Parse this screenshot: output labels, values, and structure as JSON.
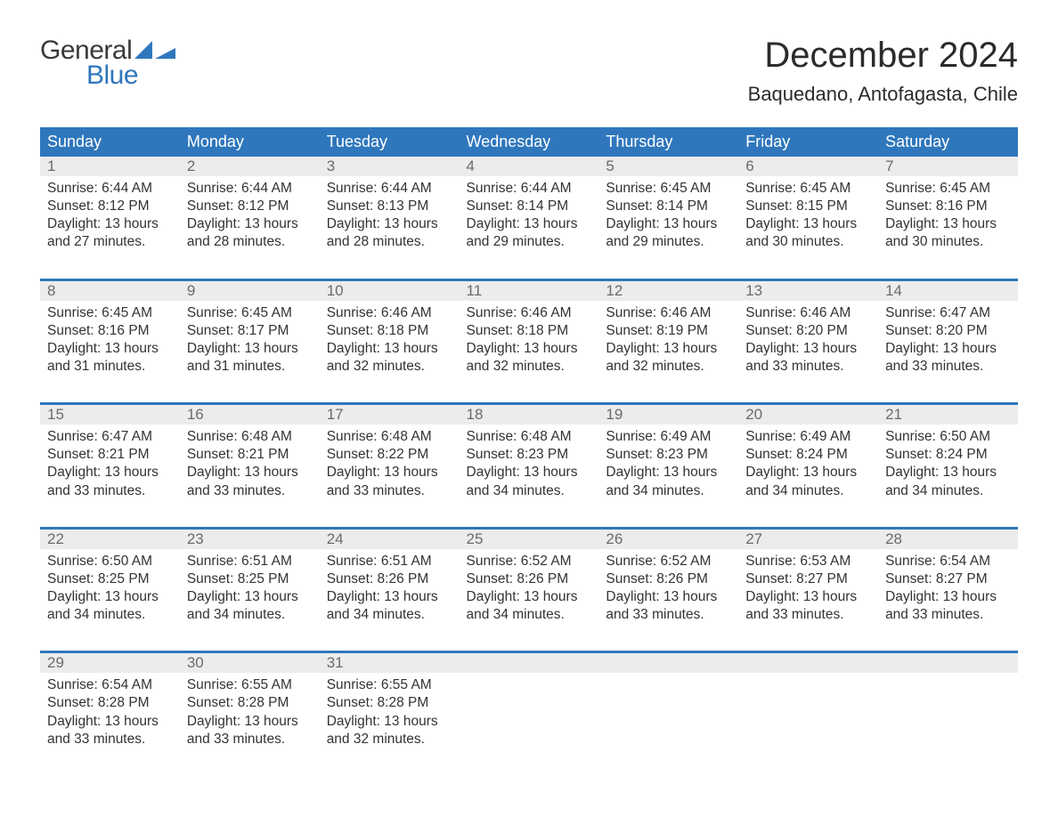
{
  "logo": {
    "word1": "General",
    "word2": "Blue",
    "color_primary": "#2f77bc",
    "color_dark": "#3a3a3a"
  },
  "title": "December 2024",
  "location": "Baquedano, Antofagasta, Chile",
  "colors": {
    "header_bg": "#2f77bc",
    "header_text": "#ffffff",
    "daynum_bg": "#ececec",
    "daynum_text": "#6b6b6b",
    "body_text": "#333333",
    "page_bg": "#ffffff"
  },
  "fonts": {
    "title_size": 40,
    "location_size": 22,
    "dayheader_size": 18,
    "daynum_size": 17,
    "data_size": 15.5
  },
  "day_headers": [
    "Sunday",
    "Monday",
    "Tuesday",
    "Wednesday",
    "Thursday",
    "Friday",
    "Saturday"
  ],
  "weeks": [
    [
      {
        "num": "1",
        "sunrise": "Sunrise: 6:44 AM",
        "sunset": "Sunset: 8:12 PM",
        "day1": "Daylight: 13 hours",
        "day2": "and 27 minutes."
      },
      {
        "num": "2",
        "sunrise": "Sunrise: 6:44 AM",
        "sunset": "Sunset: 8:12 PM",
        "day1": "Daylight: 13 hours",
        "day2": "and 28 minutes."
      },
      {
        "num": "3",
        "sunrise": "Sunrise: 6:44 AM",
        "sunset": "Sunset: 8:13 PM",
        "day1": "Daylight: 13 hours",
        "day2": "and 28 minutes."
      },
      {
        "num": "4",
        "sunrise": "Sunrise: 6:44 AM",
        "sunset": "Sunset: 8:14 PM",
        "day1": "Daylight: 13 hours",
        "day2": "and 29 minutes."
      },
      {
        "num": "5",
        "sunrise": "Sunrise: 6:45 AM",
        "sunset": "Sunset: 8:14 PM",
        "day1": "Daylight: 13 hours",
        "day2": "and 29 minutes."
      },
      {
        "num": "6",
        "sunrise": "Sunrise: 6:45 AM",
        "sunset": "Sunset: 8:15 PM",
        "day1": "Daylight: 13 hours",
        "day2": "and 30 minutes."
      },
      {
        "num": "7",
        "sunrise": "Sunrise: 6:45 AM",
        "sunset": "Sunset: 8:16 PM",
        "day1": "Daylight: 13 hours",
        "day2": "and 30 minutes."
      }
    ],
    [
      {
        "num": "8",
        "sunrise": "Sunrise: 6:45 AM",
        "sunset": "Sunset: 8:16 PM",
        "day1": "Daylight: 13 hours",
        "day2": "and 31 minutes."
      },
      {
        "num": "9",
        "sunrise": "Sunrise: 6:45 AM",
        "sunset": "Sunset: 8:17 PM",
        "day1": "Daylight: 13 hours",
        "day2": "and 31 minutes."
      },
      {
        "num": "10",
        "sunrise": "Sunrise: 6:46 AM",
        "sunset": "Sunset: 8:18 PM",
        "day1": "Daylight: 13 hours",
        "day2": "and 32 minutes."
      },
      {
        "num": "11",
        "sunrise": "Sunrise: 6:46 AM",
        "sunset": "Sunset: 8:18 PM",
        "day1": "Daylight: 13 hours",
        "day2": "and 32 minutes."
      },
      {
        "num": "12",
        "sunrise": "Sunrise: 6:46 AM",
        "sunset": "Sunset: 8:19 PM",
        "day1": "Daylight: 13 hours",
        "day2": "and 32 minutes."
      },
      {
        "num": "13",
        "sunrise": "Sunrise: 6:46 AM",
        "sunset": "Sunset: 8:20 PM",
        "day1": "Daylight: 13 hours",
        "day2": "and 33 minutes."
      },
      {
        "num": "14",
        "sunrise": "Sunrise: 6:47 AM",
        "sunset": "Sunset: 8:20 PM",
        "day1": "Daylight: 13 hours",
        "day2": "and 33 minutes."
      }
    ],
    [
      {
        "num": "15",
        "sunrise": "Sunrise: 6:47 AM",
        "sunset": "Sunset: 8:21 PM",
        "day1": "Daylight: 13 hours",
        "day2": "and 33 minutes."
      },
      {
        "num": "16",
        "sunrise": "Sunrise: 6:48 AM",
        "sunset": "Sunset: 8:21 PM",
        "day1": "Daylight: 13 hours",
        "day2": "and 33 minutes."
      },
      {
        "num": "17",
        "sunrise": "Sunrise: 6:48 AM",
        "sunset": "Sunset: 8:22 PM",
        "day1": "Daylight: 13 hours",
        "day2": "and 33 minutes."
      },
      {
        "num": "18",
        "sunrise": "Sunrise: 6:48 AM",
        "sunset": "Sunset: 8:23 PM",
        "day1": "Daylight: 13 hours",
        "day2": "and 34 minutes."
      },
      {
        "num": "19",
        "sunrise": "Sunrise: 6:49 AM",
        "sunset": "Sunset: 8:23 PM",
        "day1": "Daylight: 13 hours",
        "day2": "and 34 minutes."
      },
      {
        "num": "20",
        "sunrise": "Sunrise: 6:49 AM",
        "sunset": "Sunset: 8:24 PM",
        "day1": "Daylight: 13 hours",
        "day2": "and 34 minutes."
      },
      {
        "num": "21",
        "sunrise": "Sunrise: 6:50 AM",
        "sunset": "Sunset: 8:24 PM",
        "day1": "Daylight: 13 hours",
        "day2": "and 34 minutes."
      }
    ],
    [
      {
        "num": "22",
        "sunrise": "Sunrise: 6:50 AM",
        "sunset": "Sunset: 8:25 PM",
        "day1": "Daylight: 13 hours",
        "day2": "and 34 minutes."
      },
      {
        "num": "23",
        "sunrise": "Sunrise: 6:51 AM",
        "sunset": "Sunset: 8:25 PM",
        "day1": "Daylight: 13 hours",
        "day2": "and 34 minutes."
      },
      {
        "num": "24",
        "sunrise": "Sunrise: 6:51 AM",
        "sunset": "Sunset: 8:26 PM",
        "day1": "Daylight: 13 hours",
        "day2": "and 34 minutes."
      },
      {
        "num": "25",
        "sunrise": "Sunrise: 6:52 AM",
        "sunset": "Sunset: 8:26 PM",
        "day1": "Daylight: 13 hours",
        "day2": "and 34 minutes."
      },
      {
        "num": "26",
        "sunrise": "Sunrise: 6:52 AM",
        "sunset": "Sunset: 8:26 PM",
        "day1": "Daylight: 13 hours",
        "day2": "and 33 minutes."
      },
      {
        "num": "27",
        "sunrise": "Sunrise: 6:53 AM",
        "sunset": "Sunset: 8:27 PM",
        "day1": "Daylight: 13 hours",
        "day2": "and 33 minutes."
      },
      {
        "num": "28",
        "sunrise": "Sunrise: 6:54 AM",
        "sunset": "Sunset: 8:27 PM",
        "day1": "Daylight: 13 hours",
        "day2": "and 33 minutes."
      }
    ],
    [
      {
        "num": "29",
        "sunrise": "Sunrise: 6:54 AM",
        "sunset": "Sunset: 8:28 PM",
        "day1": "Daylight: 13 hours",
        "day2": "and 33 minutes."
      },
      {
        "num": "30",
        "sunrise": "Sunrise: 6:55 AM",
        "sunset": "Sunset: 8:28 PM",
        "day1": "Daylight: 13 hours",
        "day2": "and 33 minutes."
      },
      {
        "num": "31",
        "sunrise": "Sunrise: 6:55 AM",
        "sunset": "Sunset: 8:28 PM",
        "day1": "Daylight: 13 hours",
        "day2": "and 32 minutes."
      },
      null,
      null,
      null,
      null
    ]
  ]
}
